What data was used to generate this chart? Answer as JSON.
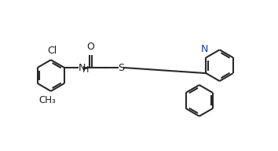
{
  "bg_color": "#ffffff",
  "line_color": "#2a2a2a",
  "text_color": "#1a1a1a",
  "N_color": "#1a3a99",
  "line_width": 1.5,
  "font_size": 9.0,
  "figsize": [
    3.54,
    1.92
  ],
  "dpi": 100,
  "xlim": [
    -0.5,
    10.5
  ],
  "ylim": [
    -0.3,
    5.5
  ]
}
